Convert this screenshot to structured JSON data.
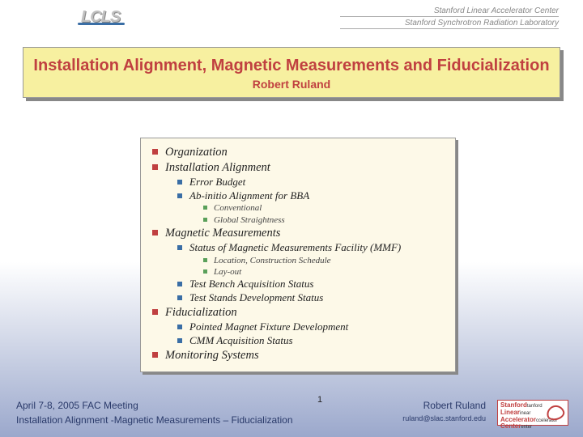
{
  "header": {
    "logo": "LCLS",
    "line1": "Stanford Linear Accelerator Center",
    "line2": "Stanford Synchrotron Radiation Laboratory"
  },
  "title": {
    "main": "Installation Alignment, Magnetic Measurements and Fiducialization",
    "author": "Robert Ruland",
    "title_color": "#c04040",
    "bg_color": "#f7f0a0"
  },
  "outline": {
    "bg_color": "#fdf9e8",
    "bullet_l1_color": "#c04040",
    "bullet_l2_color": "#3a6ea5",
    "bullet_l3_color": "#5aa05a",
    "items": [
      {
        "level": 1,
        "text": "Organization"
      },
      {
        "level": 1,
        "text": "Installation Alignment"
      },
      {
        "level": 2,
        "text": "Error Budget"
      },
      {
        "level": 2,
        "text": "Ab-initio Alignment for BBA"
      },
      {
        "level": 3,
        "text": "Conventional"
      },
      {
        "level": 3,
        "text": "Global Straightness"
      },
      {
        "level": 1,
        "text": "Magnetic Measurements"
      },
      {
        "level": 2,
        "text": "Status of Magnetic Measurements Facility (MMF)"
      },
      {
        "level": 3,
        "text": "Location, Construction Schedule"
      },
      {
        "level": 3,
        "text": "Lay-out"
      },
      {
        "level": 2,
        "text": "Test Bench Acquisition Status"
      },
      {
        "level": 2,
        "text": "Test Stands Development Status"
      },
      {
        "level": 1,
        "text": "Fiducialization"
      },
      {
        "level": 2,
        "text": "Pointed Magnet Fixture Development"
      },
      {
        "level": 2,
        "text": "CMM Acquisition Status"
      },
      {
        "level": 1,
        "text": "Monitoring Systems"
      }
    ]
  },
  "footer": {
    "date": "April 7-8, 2005   FAC Meeting",
    "slidenum": "1",
    "title": "Installation Alignment -Magnetic Measurements – Fiducialization",
    "author": "Robert Ruland",
    "email": "ruland@slac.stanford.edu",
    "logo_lines": [
      "Stanford",
      "Linear",
      "Accelerator",
      "Center"
    ]
  },
  "colors": {
    "gradient_bottom": "#9ba8cc",
    "footer_text": "#2a3a6a"
  }
}
